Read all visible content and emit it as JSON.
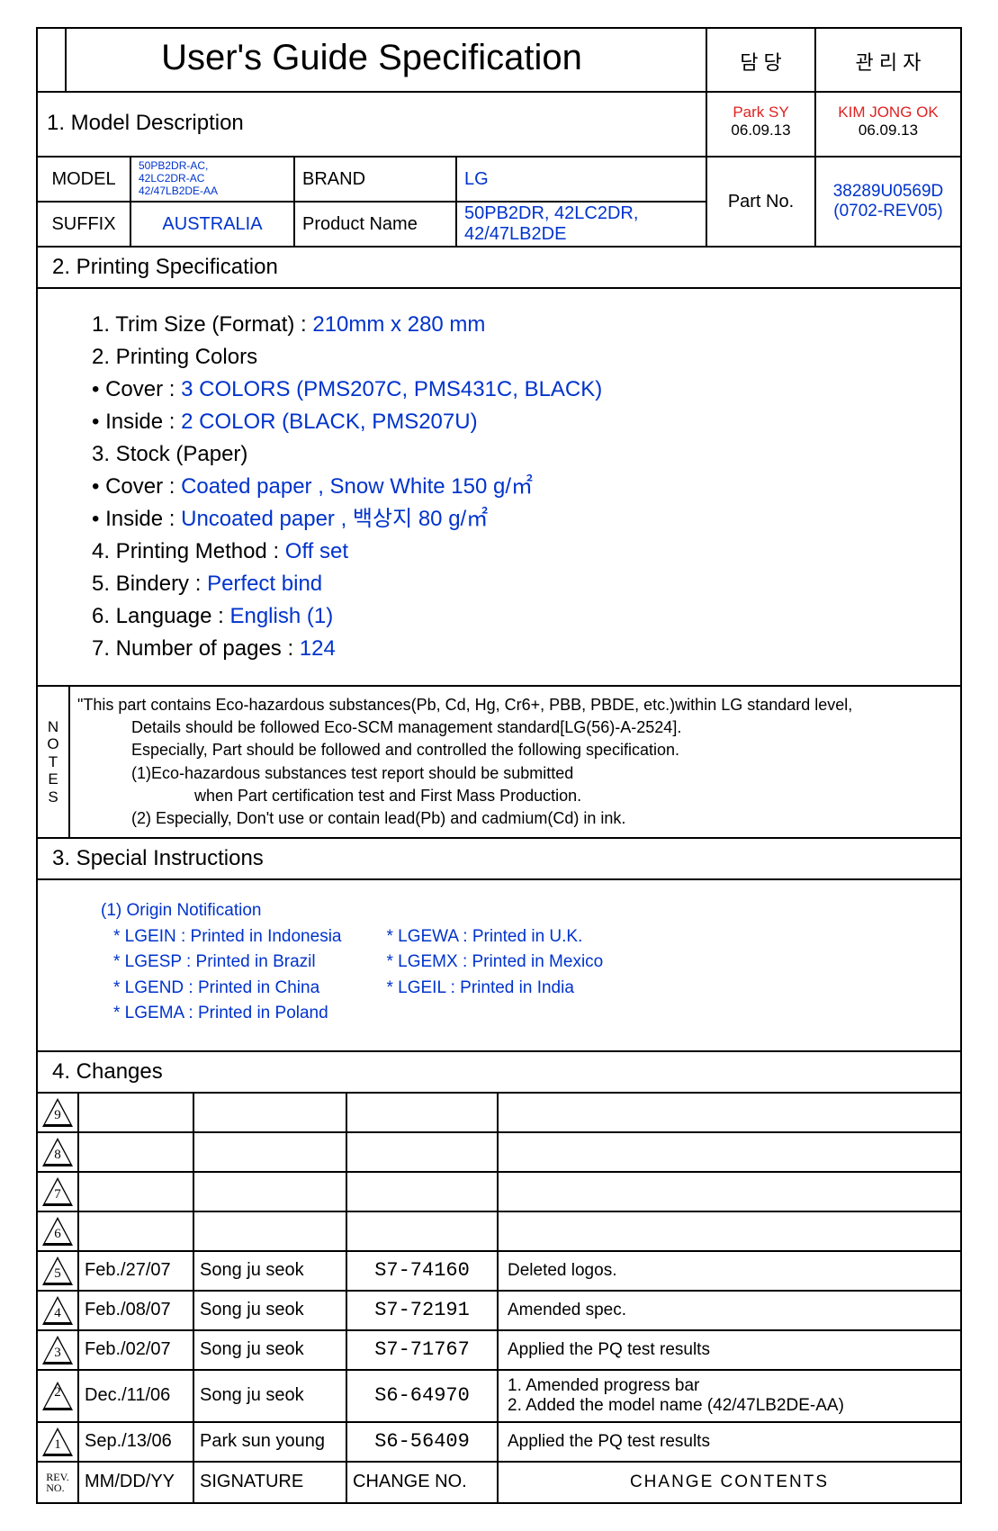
{
  "title": "User's Guide Specification",
  "approval": {
    "col1_label": "담  당",
    "col2_label": "관 리 자",
    "col1_name": "Park SY",
    "col1_date": "06.09.13",
    "col2_name": "KIM JONG OK",
    "col2_date": "06.09.13",
    "col1_name_color": "#d22",
    "col2_name_color": "#d22"
  },
  "section1_title": "1.  Model Description",
  "model_table": {
    "model_label": "MODEL",
    "model_value": "50PB2DR-AC,\n42LC2DR-AC\n42/47LB2DE-AA",
    "brand_label": "BRAND",
    "brand_value": "LG",
    "suffix_label": "SUFFIX",
    "suffix_value": "AUSTRALIA",
    "product_label": "Product Name",
    "product_value": "50PB2DR, 42LC2DR, 42/47LB2DE",
    "partno_label": "Part No.",
    "partno_value": "38289U0569D",
    "partno_rev": "(0702-REV05)"
  },
  "section2_title": "2.     Printing Specification",
  "print_spec": {
    "l1a": "1. Trim Size (Format) : ",
    "l1b": "210mm x 280 mm",
    "l2": "2. Printing Colors",
    "l3a": "• Cover : ",
    "l3b": "3 COLORS (PMS207C, PMS431C, BLACK)",
    "l4a": "• Inside : ",
    "l4b": "2 COLOR (BLACK, PMS207U)",
    "l5": "3. Stock (Paper)",
    "l6a": "• Cover : ",
    "l6b": "Coated paper , Snow White 150 g/㎡",
    "l7a": "• Inside : ",
    "l7b": "Uncoated paper , 백상지 80 g/㎡",
    "l8a": "4. Printing Method : ",
    "l8b": "Off set",
    "l9a": "5. Bindery  : ",
    "l9b": "Perfect bind",
    "l10a": "6. Language : ",
    "l10b": "English (1)",
    "l11a": "7. Number of pages : ",
    "l11b": "124"
  },
  "notes": {
    "label": "NOTES",
    "lines": [
      "\"This part contains Eco-hazardous substances(Pb, Cd, Hg, Cr6+, PBB, PBDE, etc.)within LG standard level,",
      "Details should be followed Eco-SCM management standard[LG(56)-A-2524].",
      "Especially, Part should be followed and controlled the following specification.",
      "(1)Eco-hazardous substances test report should be submitted",
      "when  Part certification test and First Mass Production.",
      "(2) Especially, Don't use or contain lead(Pb) and cadmium(Cd) in ink."
    ]
  },
  "section3_title": "3.     Special Instructions",
  "special": {
    "heading": "(1) Origin Notification",
    "col1": [
      "* LGEIN : Printed in Indonesia",
      "* LGESP : Printed in Brazil",
      "* LGEND : Printed in China",
      "* LGEMA : Printed in Poland"
    ],
    "col2": [
      "* LGEWA : Printed in U.K.",
      "* LGEMX : Printed in Mexico",
      "* LGEIL : Printed in India"
    ]
  },
  "section4_title": "4.     Changes",
  "changes": {
    "header": {
      "rev": "REV.\nNO.",
      "date": "MM/DD/YY",
      "sig": "SIGNATURE",
      "no": "CHANGE NO.",
      "cont": "CHANGE    CONTENTS"
    },
    "rows": [
      {
        "rev": "9",
        "date": "",
        "sig": "",
        "no": "",
        "cont": ""
      },
      {
        "rev": "8",
        "date": "",
        "sig": "",
        "no": "",
        "cont": ""
      },
      {
        "rev": "7",
        "date": "",
        "sig": "",
        "no": "",
        "cont": ""
      },
      {
        "rev": "6",
        "date": "",
        "sig": "",
        "no": "",
        "cont": ""
      },
      {
        "rev": "5",
        "date": "Feb./27/07",
        "sig": "Song ju seok",
        "no": "S7-74160",
        "cont": "Deleted logos."
      },
      {
        "rev": "4",
        "date": "Feb./08/07",
        "sig": "Song ju seok",
        "no": "S7-72191",
        "cont": "Amended spec."
      },
      {
        "rev": "3",
        "date": "Feb./02/07",
        "sig": "Song ju seok",
        "no": "S7-71767",
        "cont": "Applied the PQ test results"
      },
      {
        "rev": "2",
        "date": "Dec./11/06",
        "sig": "Song ju seok",
        "no": "S6-64970",
        "cont": "1. Amended progress bar\n2. Added the model name (42/47LB2DE-AA)",
        "tall": true
      },
      {
        "rev": "1",
        "date": "Sep./13/06",
        "sig": "Park sun young",
        "no": "S6-56409",
        "cont": "Applied the PQ test results"
      }
    ]
  },
  "colors": {
    "text": "#000000",
    "blue": "#0033cc",
    "red": "#d22",
    "border": "#000000",
    "background": "#ffffff"
  }
}
